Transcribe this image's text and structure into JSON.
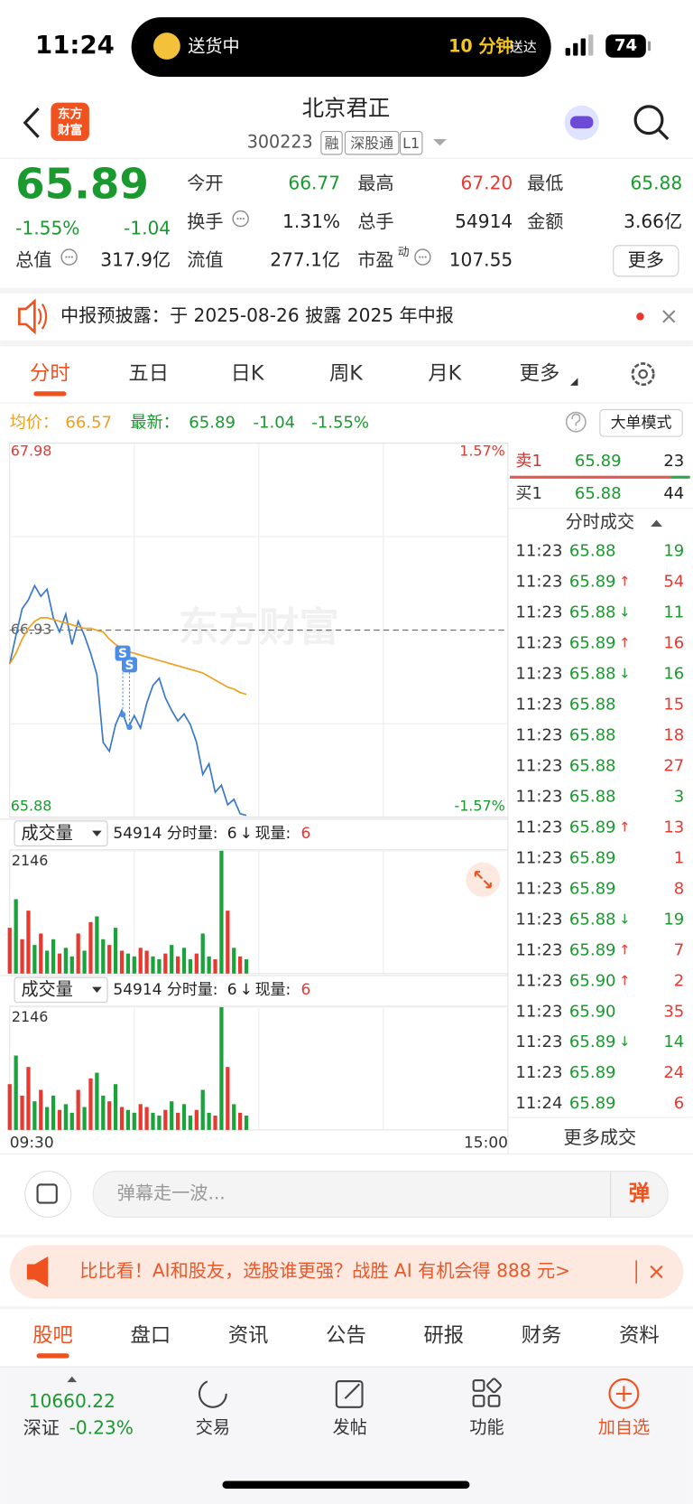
{
  "status_bar": {
    "time": "11:24",
    "activity": "送货中",
    "eta": "10 分钟",
    "eta_suffix": "送达",
    "battery": "74"
  },
  "header": {
    "logo": [
      "东方",
      "财富"
    ],
    "title": "北京君正",
    "code": "300223",
    "tags": [
      "融",
      "深股通",
      "L1"
    ]
  },
  "quote": {
    "price": "65.89",
    "change_pct": "-1.55%",
    "change": "-1.04",
    "color": "#1a9a2e",
    "stats": [
      [
        {
          "label": "今开",
          "value": "66.77",
          "color": "#1a9a2e"
        },
        {
          "label": "最高",
          "value": "67.20",
          "color": "#e8382f"
        },
        {
          "label": "最低",
          "value": "65.88",
          "color": "#1a9a2e"
        }
      ],
      [
        {
          "label": "换手",
          "info": true,
          "value": "1.31%"
        },
        {
          "label": "总手",
          "value": "54914"
        },
        {
          "label": "金额",
          "value": "3.66亿"
        }
      ],
      [
        {
          "label": "总值",
          "info": true,
          "value": "317.9亿"
        },
        {
          "label": "流值",
          "value": "277.1亿"
        },
        {
          "label": "市盈",
          "sup": "动",
          "info": true,
          "value": "107.55"
        }
      ]
    ],
    "more": "更多"
  },
  "notice": "中报预披露：于 2025-08-26 披露 2025 年中报",
  "tabs": [
    "分时",
    "五日",
    "日K",
    "周K",
    "月K",
    "更多"
  ],
  "active_tab": 0,
  "mode_button": "大单模式",
  "watermark": "东方财富",
  "chart_data": [
    {
      "type": "line",
      "x": [
        0,
        3,
        6,
        9,
        12,
        15,
        18,
        21,
        24,
        27,
        30,
        33,
        36,
        39,
        42,
        45,
        48,
        51,
        54,
        57,
        60,
        63,
        66,
        69,
        72,
        75,
        78,
        81,
        84,
        87,
        90,
        93,
        96,
        99,
        102,
        105,
        108,
        111,
        114
      ],
      "xlim": [
        0,
        240
      ],
      "xticks": [
        {
          "value": 0,
          "label": "09:30"
        },
        {
          "value": 240,
          "label": "15:00"
        }
      ],
      "xgrid": [
        60,
        120,
        180
      ],
      "ylim": [
        65.88,
        67.98
      ],
      "yticks": [
        67.98,
        66.93,
        65.88
      ],
      "ygrid": [
        67.455,
        66.405
      ],
      "right_labels": [
        "1.57%",
        "-1.57%"
      ],
      "annotations": [
        "S",
        "S"
      ],
      "series": [
        {
          "name": "最新：",
          "color": "#3a78c8",
          "legend_color": "#1a9a2e",
          "legend_values": [
            "65.89",
            "-1.04",
            "-1.55%"
          ],
          "values": [
            66.74,
            66.9,
            67.05,
            67.1,
            67.18,
            67.12,
            67.16,
            67.0,
            66.92,
            67.02,
            66.85,
            66.98,
            66.9,
            66.8,
            66.68,
            66.3,
            66.25,
            66.4,
            66.48,
            66.38,
            66.45,
            66.38,
            66.52,
            66.62,
            66.66,
            66.55,
            66.48,
            66.42,
            66.46,
            66.4,
            66.3,
            66.12,
            66.18,
            66.02,
            66.06,
            65.95,
            65.98,
            65.9,
            65.89
          ]
        },
        {
          "name": "均价：",
          "color": "#f0a020",
          "legend_color": "#f0a020",
          "legend_values": [
            "66.57"
          ],
          "values": [
            66.74,
            66.8,
            66.88,
            66.94,
            66.98,
            67.0,
            67.0,
            66.99,
            66.98,
            66.97,
            66.96,
            66.95,
            66.94,
            66.94,
            66.93,
            66.92,
            66.88,
            66.85,
            66.83,
            66.81,
            66.8,
            66.79,
            66.78,
            66.77,
            66.76,
            66.75,
            66.74,
            66.73,
            66.72,
            66.71,
            66.7,
            66.69,
            66.67,
            66.65,
            66.63,
            66.61,
            66.6,
            66.58,
            66.57
          ]
        }
      ]
    },
    {
      "type": "bar",
      "x": [
        0,
        3,
        6,
        9,
        12,
        15,
        18,
        21,
        24,
        27,
        30,
        33,
        36,
        39,
        42,
        45,
        48,
        51,
        54,
        57,
        60,
        63,
        66,
        69,
        72,
        75,
        78,
        81,
        84,
        87,
        90,
        93,
        96,
        99,
        102,
        105,
        108,
        111,
        114
      ],
      "xlim": [
        0,
        240
      ],
      "xgrid": [
        60,
        120,
        180
      ],
      "ylim": [
        0,
        2146
      ],
      "yticks": [
        2146
      ],
      "values": [
        800,
        1300,
        600,
        1100,
        500,
        700,
        400,
        600,
        350,
        450,
        300,
        700,
        400,
        900,
        1000,
        600,
        500,
        800,
        400,
        350,
        300,
        450,
        400,
        300,
        250,
        350,
        500,
        300,
        450,
        250,
        350,
        700,
        300,
        250,
        2146,
        1100,
        450,
        300,
        250
      ],
      "colors": [
        "#e8382f",
        "#1aa33a",
        "#e8382f",
        "#e8382f",
        "#1aa33a",
        "#e8382f",
        "#1aa33a",
        "#1aa33a",
        "#e8382f",
        "#1aa33a",
        "#1aa33a",
        "#e8382f",
        "#1aa33a",
        "#e8382f",
        "#1aa33a",
        "#1aa33a",
        "#e8382f",
        "#1aa33a",
        "#e8382f",
        "#1aa33a",
        "#1aa33a",
        "#e8382f",
        "#e8382f",
        "#1aa33a",
        "#1aa33a",
        "#e8382f",
        "#1aa33a",
        "#e8382f",
        "#1aa33a",
        "#1aa33a",
        "#e8382f",
        "#1aa33a",
        "#1aa33a",
        "#e8382f",
        "#1aa33a",
        "#e8382f",
        "#1aa33a",
        "#e8382f",
        "#1aa33a"
      ]
    }
  ],
  "volume_header": {
    "name": "成交量",
    "total": "54914",
    "label": "分时量:",
    "value": "6",
    "arrow": "↓",
    "current_label": "现量:",
    "current": "6"
  },
  "order_book": [
    {
      "side": "卖1",
      "price": "65.89",
      "volume": "23",
      "color": "#c8352c"
    },
    {
      "side": "买1",
      "price": "65.88",
      "volume": "44",
      "color": "#333333"
    }
  ],
  "trades_title": "分时成交",
  "trades": [
    {
      "time": "11:23",
      "price": "65.88",
      "volume": "19",
      "color": "#1a9a2e"
    },
    {
      "time": "11:23",
      "price": "65.89",
      "arrow": "↑",
      "volume": "54",
      "color": "#e8382f"
    },
    {
      "time": "11:23",
      "price": "65.88",
      "arrow": "↓",
      "volume": "11",
      "color": "#1a9a2e"
    },
    {
      "time": "11:23",
      "price": "65.89",
      "arrow": "↑",
      "volume": "16",
      "color": "#e8382f"
    },
    {
      "time": "11:23",
      "price": "65.88",
      "arrow": "↓",
      "volume": "16",
      "color": "#1a9a2e"
    },
    {
      "time": "11:23",
      "price": "65.88",
      "volume": "15",
      "color": "#e8382f"
    },
    {
      "time": "11:23",
      "price": "65.88",
      "volume": "18",
      "color": "#e8382f"
    },
    {
      "time": "11:23",
      "price": "65.88",
      "volume": "27",
      "color": "#e8382f"
    },
    {
      "time": "11:23",
      "price": "65.88",
      "volume": "3",
      "color": "#1a9a2e"
    },
    {
      "time": "11:23",
      "price": "65.89",
      "arrow": "↑",
      "volume": "13",
      "color": "#e8382f"
    },
    {
      "time": "11:23",
      "price": "65.89",
      "volume": "1",
      "color": "#e8382f"
    },
    {
      "time": "11:23",
      "price": "65.89",
      "volume": "8",
      "color": "#e8382f"
    },
    {
      "time": "11:23",
      "price": "65.88",
      "arrow": "↓",
      "volume": "19",
      "color": "#1a9a2e"
    },
    {
      "time": "11:23",
      "price": "65.89",
      "arrow": "↑",
      "volume": "7",
      "color": "#e8382f"
    },
    {
      "time": "11:23",
      "price": "65.90",
      "arrow": "↑",
      "volume": "2",
      "color": "#e8382f"
    },
    {
      "time": "11:23",
      "price": "65.90",
      "volume": "35",
      "color": "#e8382f"
    },
    {
      "time": "11:23",
      "price": "65.89",
      "arrow": "↓",
      "volume": "14",
      "color": "#1a9a2e"
    },
    {
      "time": "11:23",
      "price": "65.89",
      "volume": "24",
      "color": "#e8382f"
    },
    {
      "time": "11:24",
      "price": "65.89",
      "volume": "6",
      "color": "#e8382f"
    }
  ],
  "trades_more": "更多成交",
  "comment": {
    "placeholder": "弹幕走一波...",
    "button": "弹"
  },
  "banner": "比比看！AI和股友，选股谁更强？战胜 AI 有机会得 888 元>",
  "bottom_tabs": [
    "股吧",
    "盘口",
    "资讯",
    "公告",
    "研报",
    "财务",
    "资料"
  ],
  "nav": {
    "index_value": "10660.22",
    "index_name": "深证",
    "index_change": "-0.23%",
    "items": [
      "交易",
      "发帖",
      "功能",
      "加自选"
    ]
  }
}
